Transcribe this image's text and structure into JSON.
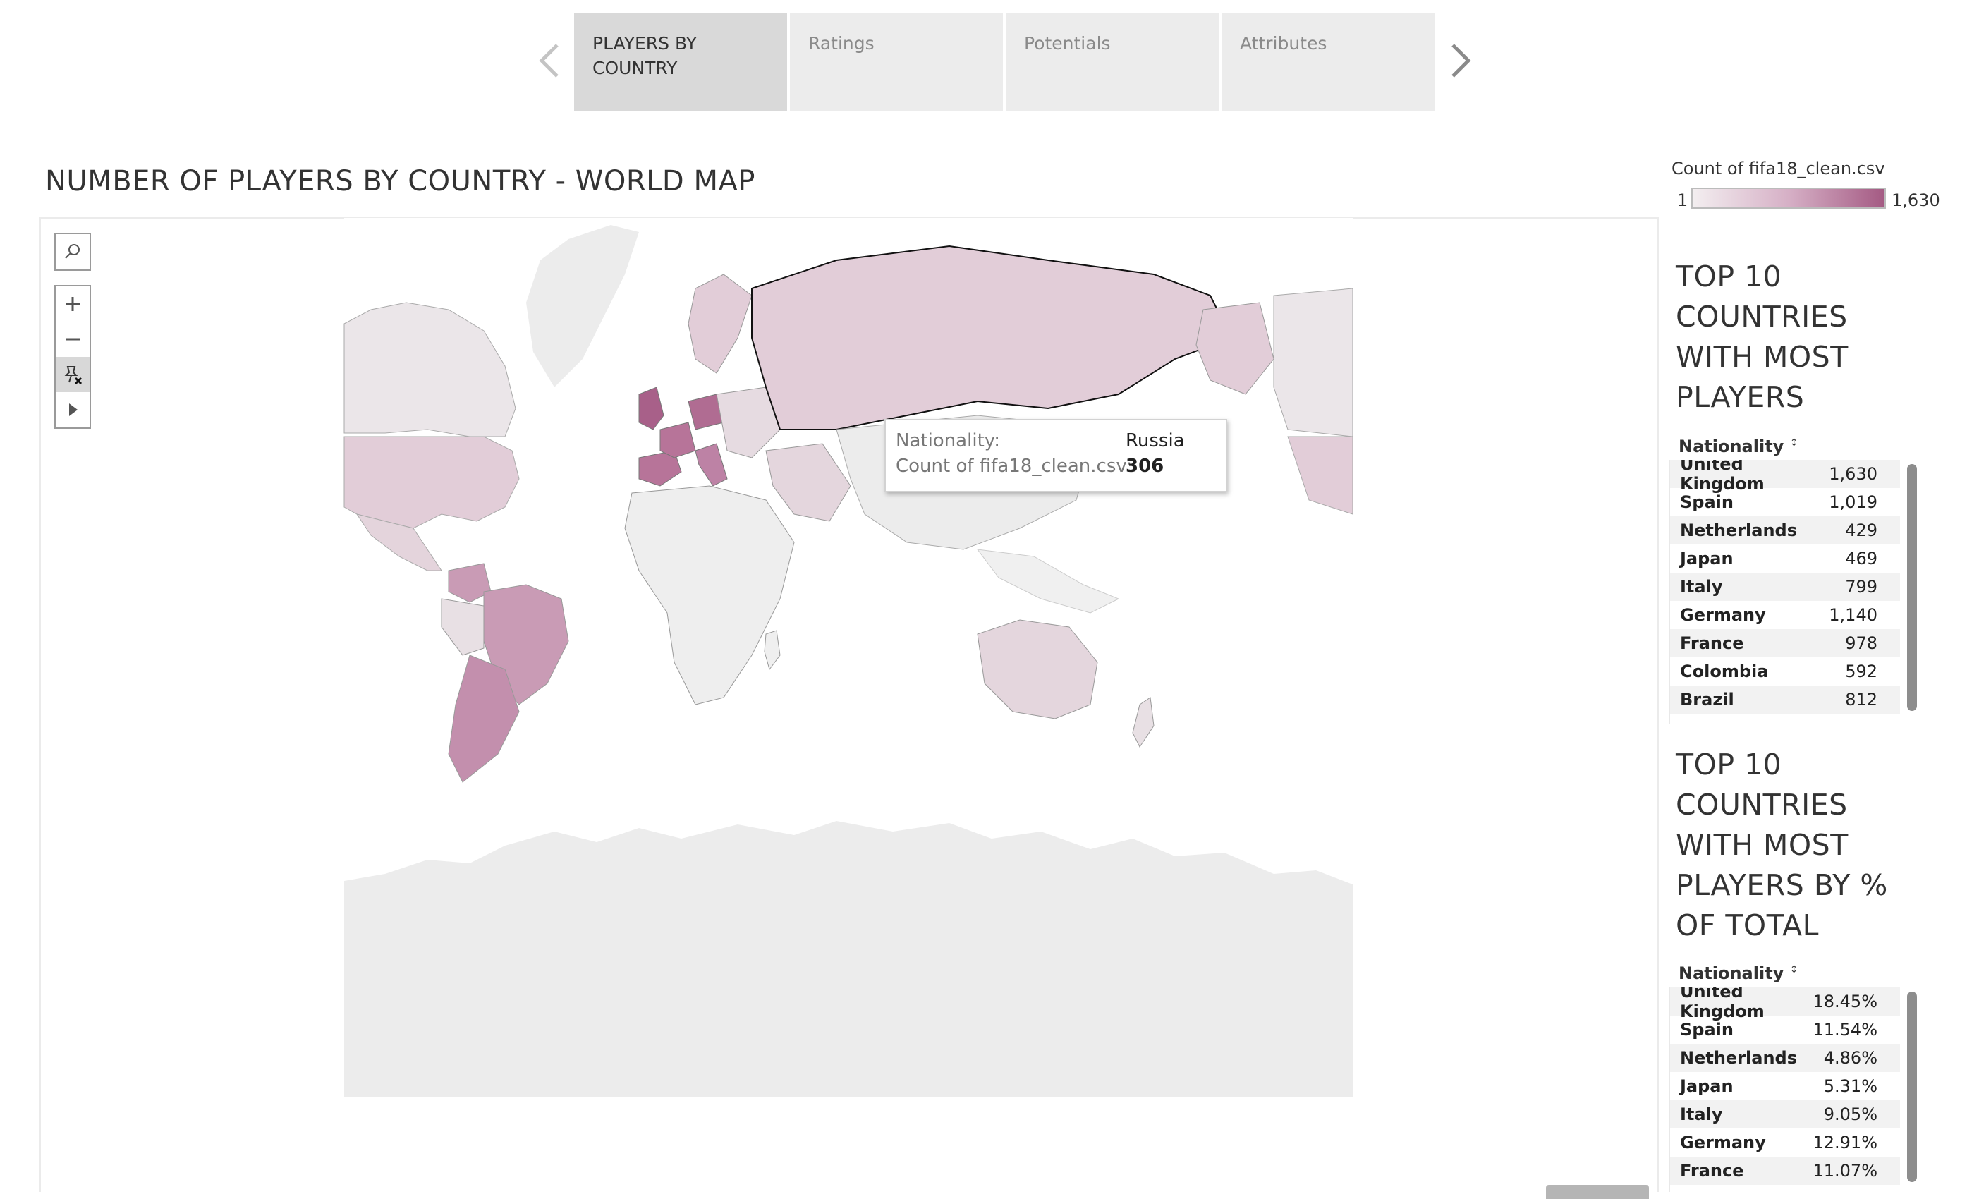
{
  "story": {
    "tabs": [
      {
        "line1": "PLAYERS BY",
        "line2": "COUNTRY",
        "active": true
      },
      {
        "line1": "Ratings",
        "line2": "",
        "active": false
      },
      {
        "line1": "Potentials",
        "line2": "",
        "active": false
      },
      {
        "line1": "Attributes",
        "line2": "",
        "active": false
      }
    ]
  },
  "view": {
    "title": "NUMBER OF PLAYERS BY COUNTRY - WORLD MAP"
  },
  "legend": {
    "title": "Count of fifa18_clean.csv",
    "min": "1",
    "max": "1,630",
    "color_low": "#f3eef0",
    "color_high": "#a45a83"
  },
  "tooltip": {
    "label1": "Nationality:",
    "value1": "Russia",
    "label2": "Count of fifa18_clean.csv:",
    "value2": "306"
  },
  "top10_count": {
    "title_lines": [
      "TOP 10",
      "COUNTRIES",
      "WITH MOST",
      "PLAYERS"
    ],
    "column_header": "Nationality",
    "rows": [
      {
        "name": "United Kingdom",
        "value": "1,630"
      },
      {
        "name": "Spain",
        "value": "1,019"
      },
      {
        "name": "Netherlands",
        "value": "429"
      },
      {
        "name": "Japan",
        "value": "469"
      },
      {
        "name": "Italy",
        "value": "799"
      },
      {
        "name": "Germany",
        "value": "1,140"
      },
      {
        "name": "France",
        "value": "978"
      },
      {
        "name": "Colombia",
        "value": "592"
      },
      {
        "name": "Brazil",
        "value": "812"
      }
    ]
  },
  "top10_pct": {
    "title_lines": [
      "TOP 10",
      "COUNTRIES",
      "WITH MOST",
      "PLAYERS BY %",
      "OF TOTAL"
    ],
    "column_header": "Nationality",
    "rows": [
      {
        "name": "United Kingdom",
        "value": "18.45%"
      },
      {
        "name": "Spain",
        "value": "11.54%"
      },
      {
        "name": "Netherlands",
        "value": "4.86%"
      },
      {
        "name": "Japan",
        "value": "5.31%"
      },
      {
        "name": "Italy",
        "value": "9.05%"
      },
      {
        "name": "Germany",
        "value": "12.91%"
      },
      {
        "name": "France",
        "value": "11.07%"
      }
    ]
  },
  "map_colors": {
    "land": "#ededed",
    "light": "#e2cdd8",
    "medium": "#c99bb5",
    "dark": "#a86089"
  }
}
